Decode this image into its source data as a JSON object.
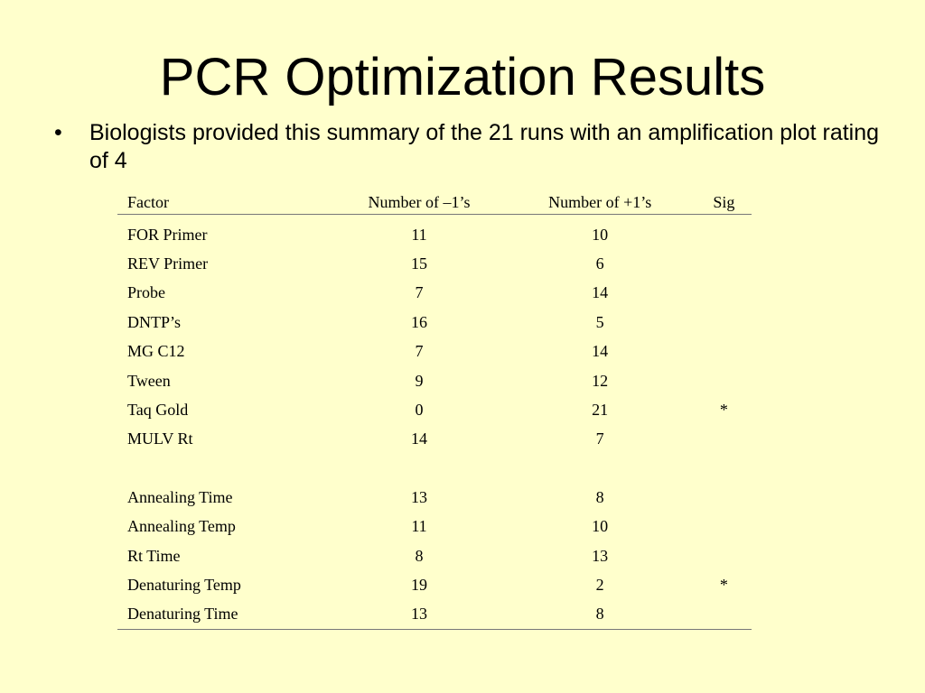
{
  "slide": {
    "title": "PCR Optimization Results",
    "bullet_marker": "•",
    "bullet_text": "Biologists provided this summary of the 21 runs with an amplification plot rating of 4"
  },
  "table": {
    "headers": {
      "factor": "Factor",
      "minus": "Number of –1’s",
      "plus": "Number of +1’s",
      "sig": "Sig"
    },
    "group_a": [
      {
        "factor": "FOR Primer",
        "minus": "11",
        "plus": "10",
        "sig": ""
      },
      {
        "factor": "REV Primer",
        "minus": "15",
        "plus": "6",
        "sig": ""
      },
      {
        "factor": "Probe",
        "minus": "7",
        "plus": "14",
        "sig": ""
      },
      {
        "factor": "DNTP’s",
        "minus": "16",
        "plus": "5",
        "sig": ""
      },
      {
        "factor": "MG C12",
        "minus": "7",
        "plus": "14",
        "sig": ""
      },
      {
        "factor": "Tween",
        "minus": "9",
        "plus": "12",
        "sig": ""
      },
      {
        "factor": "Taq Gold",
        "minus": "0",
        "plus": "21",
        "sig": "*"
      },
      {
        "factor": "MULV Rt",
        "minus": "14",
        "plus": "7",
        "sig": ""
      }
    ],
    "group_b": [
      {
        "factor": "Annealing Time",
        "minus": "13",
        "plus": "8",
        "sig": ""
      },
      {
        "factor": "Annealing Temp",
        "minus": "11",
        "plus": "10",
        "sig": ""
      },
      {
        "factor": "Rt Time",
        "minus": "8",
        "plus": "13",
        "sig": ""
      },
      {
        "factor": "Denaturing Temp",
        "minus": "19",
        "plus": "2",
        "sig": "*"
      },
      {
        "factor": "Denaturing Time",
        "minus": "13",
        "plus": "8",
        "sig": ""
      }
    ]
  }
}
